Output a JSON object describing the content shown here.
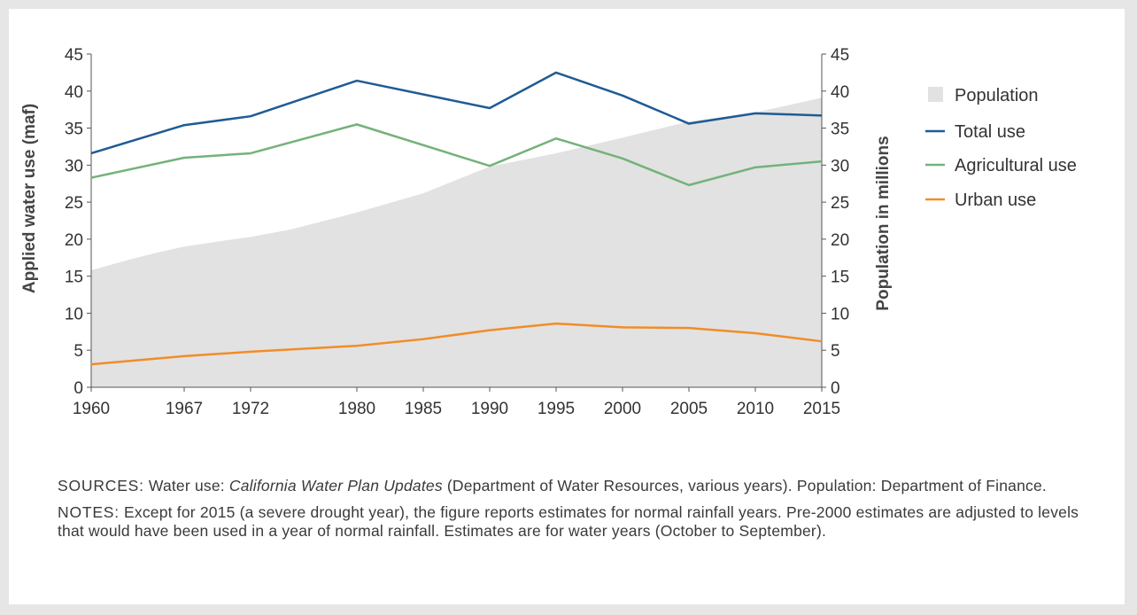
{
  "chart_data": {
    "type": "line",
    "title": "",
    "xlabel": "",
    "ylabel": "Applied water use (maf)",
    "y2label": "Population in millions",
    "ylim": [
      0,
      45
    ],
    "y2lim": [
      0,
      45
    ],
    "xlim": [
      1960,
      2015
    ],
    "yticks": [
      0,
      5,
      10,
      15,
      20,
      25,
      30,
      35,
      40,
      45
    ],
    "xticks": [
      1960,
      1967,
      1972,
      1980,
      1985,
      1990,
      1995,
      2000,
      2005,
      2010,
      2015
    ],
    "legend_position": "right",
    "legend": [
      "Population",
      "Total use",
      "Agricultural use",
      "Urban use"
    ],
    "area": {
      "name": "Population",
      "color": "#e2e2e2",
      "x": [
        1960,
        1963,
        1965,
        1967,
        1970,
        1972,
        1975,
        1980,
        1985,
        1990,
        1995,
        2000,
        2005,
        2010,
        2015
      ],
      "values": [
        15.8,
        17.3,
        18.2,
        19.0,
        19.8,
        20.3,
        21.3,
        23.6,
        26.2,
        29.8,
        31.6,
        33.7,
        35.9,
        37.1,
        39.1
      ]
    },
    "series": [
      {
        "name": "Total use",
        "color": "#1f5b94",
        "x": [
          1960,
          1967,
          1972,
          1980,
          1990,
          1995,
          2000,
          2005,
          2010,
          2015
        ],
        "values": [
          31.6,
          35.4,
          36.6,
          41.4,
          37.7,
          42.5,
          39.4,
          35.6,
          37.0,
          36.7
        ]
      },
      {
        "name": "Agricultural use",
        "color": "#74b27a",
        "x": [
          1960,
          1967,
          1972,
          1980,
          1990,
          1995,
          2000,
          2005,
          2010,
          2015
        ],
        "values": [
          28.3,
          31.0,
          31.6,
          35.5,
          29.9,
          33.6,
          30.9,
          27.3,
          29.7,
          30.5
        ]
      },
      {
        "name": "Urban use",
        "color": "#f28c28",
        "x": [
          1960,
          1967,
          1972,
          1980,
          1985,
          1990,
          1995,
          2000,
          2005,
          2010,
          2015
        ],
        "values": [
          3.1,
          4.2,
          4.8,
          5.6,
          6.5,
          7.7,
          8.6,
          8.1,
          8.0,
          7.3,
          6.2
        ]
      }
    ]
  },
  "notes": {
    "sources_label": "SOURCES:",
    "sources_pre": " Water use: ",
    "sources_italic": "California Water Plan Updates",
    "sources_post": " (Department of Water Resources, various years). Population: Department of Finance.",
    "notes_label": "NOTES:",
    "notes_text": " Except for 2015 (a severe drought year), the figure reports estimates for normal rainfall years. Pre-2000 estimates are adjusted to levels that would have been used in a year of normal rainfall. Estimates are for water years (October to September)."
  }
}
